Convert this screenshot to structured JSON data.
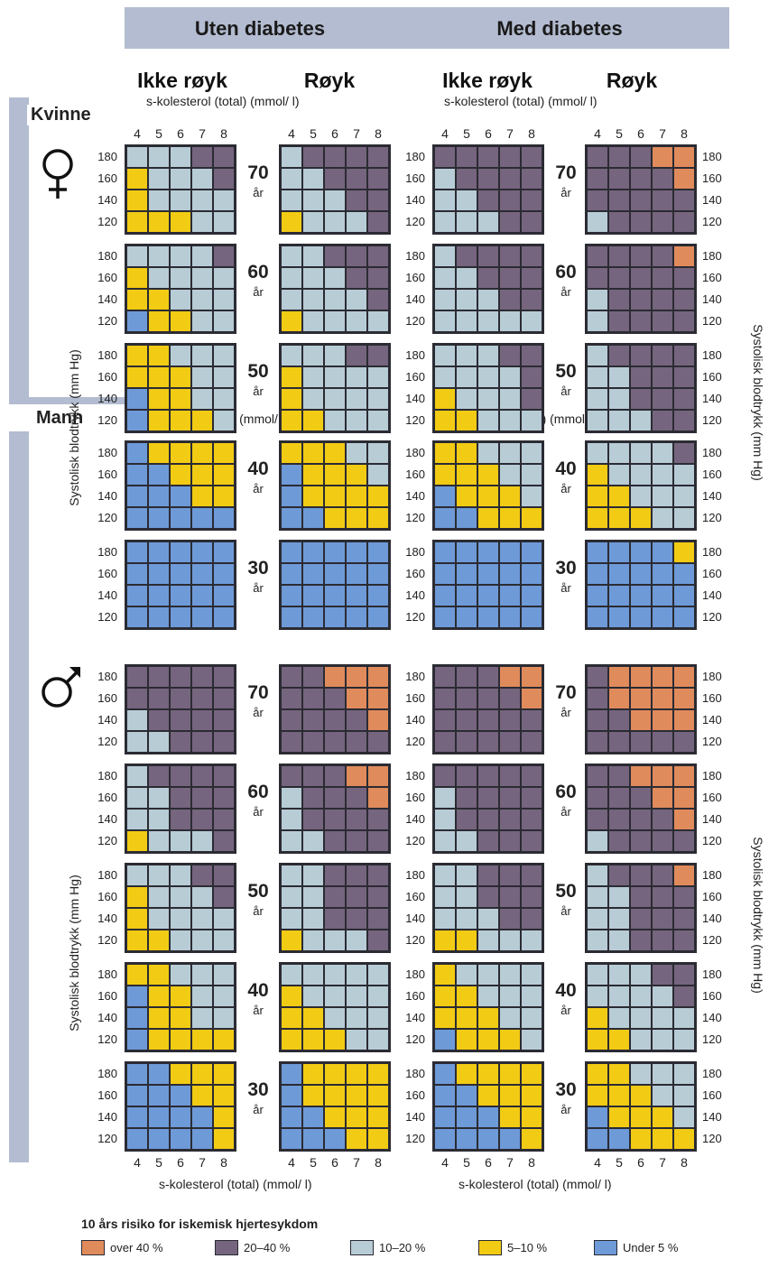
{
  "banner": {
    "left": "Uten diabetes",
    "right": "Med diabetes"
  },
  "columns": [
    "Ikke røyk",
    "Røyk",
    "Ikke røyk",
    "Røyk"
  ],
  "col_subtitle": "s-kolesterol (total) (mmol/ l)",
  "mid_axis_label": "s-kolesterol (total) (mmol/ l)",
  "bottom_axis_label": "s-kolesterol (total) (mmol/ l)",
  "sections": {
    "women": "Kvinne",
    "men": "Mann"
  },
  "y_axis_label": "Systolisk blodtrykk (mm Hg)",
  "age_unit": "år",
  "ages": [
    "70",
    "60",
    "50",
    "40",
    "30"
  ],
  "bp_ticks": [
    "180",
    "160",
    "140",
    "120"
  ],
  "chol_ticks": [
    "4",
    "5",
    "6",
    "7",
    "8"
  ],
  "icons": {
    "female": "female-symbol-icon",
    "male": "male-symbol-icon"
  },
  "legend": {
    "title": "10 års risiko for iskemisk hjertesykdom",
    "items": [
      {
        "key": "O",
        "label": "over 40 %",
        "color": "#e08b5c"
      },
      {
        "key": "P",
        "label": "20–40 %",
        "color": "#76657e"
      },
      {
        "key": "G",
        "label": "10–20 %",
        "color": "#b8ccd6"
      },
      {
        "key": "Y",
        "label": "5–10 %",
        "color": "#f2cb14"
      },
      {
        "key": "B",
        "label": "Under 5 %",
        "color": "#6e9ad8"
      }
    ]
  },
  "chart_data": {
    "type": "heatmap",
    "x": [
      4,
      5,
      6,
      7,
      8
    ],
    "y": [
      180,
      160,
      140,
      120
    ],
    "panels": [
      {
        "sex": "Kvinne",
        "diabetes": "Uten diabetes",
        "smoking": "Ikke røyk",
        "age": 70,
        "rows": [
          "GGGPP",
          "YGGGP",
          "YGGGG",
          "YYYGG"
        ]
      },
      {
        "sex": "Kvinne",
        "diabetes": "Uten diabetes",
        "smoking": "Røyk",
        "age": 70,
        "rows": [
          "GPPPP",
          "GGPPP",
          "GGGPP",
          "YGGGP"
        ]
      },
      {
        "sex": "Kvinne",
        "diabetes": "Med diabetes",
        "smoking": "Ikke røyk",
        "age": 70,
        "rows": [
          "PPPPP",
          "GPPPP",
          "GGPPP",
          "GGGPP"
        ]
      },
      {
        "sex": "Kvinne",
        "diabetes": "Med diabetes",
        "smoking": "Røyk",
        "age": 70,
        "rows": [
          "PPPOO",
          "PPPPO",
          "PPPPP",
          "GPPPP"
        ]
      },
      {
        "sex": "Kvinne",
        "diabetes": "Uten diabetes",
        "smoking": "Ikke røyk",
        "age": 60,
        "rows": [
          "GGGGP",
          "YGGGG",
          "YYGGG",
          "BYYGG"
        ]
      },
      {
        "sex": "Kvinne",
        "diabetes": "Uten diabetes",
        "smoking": "Røyk",
        "age": 60,
        "rows": [
          "GGPPP",
          "GGGPP",
          "GGGGP",
          "YGGGG"
        ]
      },
      {
        "sex": "Kvinne",
        "diabetes": "Med diabetes",
        "smoking": "Ikke røyk",
        "age": 60,
        "rows": [
          "GPPPP",
          "GGPPP",
          "GGGPP",
          "GGGGG"
        ]
      },
      {
        "sex": "Kvinne",
        "diabetes": "Med diabetes",
        "smoking": "Røyk",
        "age": 60,
        "rows": [
          "PPPPO",
          "PPPPP",
          "GPPPP",
          "GPPPP"
        ]
      },
      {
        "sex": "Kvinne",
        "diabetes": "Uten diabetes",
        "smoking": "Ikke røyk",
        "age": 50,
        "rows": [
          "YYGGG",
          "YYYGG",
          "BYYGG",
          "BYYYG"
        ]
      },
      {
        "sex": "Kvinne",
        "diabetes": "Uten diabetes",
        "smoking": "Røyk",
        "age": 50,
        "rows": [
          "GGGPP",
          "YGGGG",
          "YGGGG",
          "YYGGG"
        ]
      },
      {
        "sex": "Kvinne",
        "diabetes": "Med diabetes",
        "smoking": "Ikke røyk",
        "age": 50,
        "rows": [
          "GGGPP",
          "GGGGP",
          "YGGGP",
          "YYGGG"
        ]
      },
      {
        "sex": "Kvinne",
        "diabetes": "Med diabetes",
        "smoking": "Røyk",
        "age": 50,
        "rows": [
          "GPPPP",
          "GGPPP",
          "GGPPP",
          "GGGPP"
        ]
      },
      {
        "sex": "Kvinne",
        "diabetes": "Uten diabetes",
        "smoking": "Ikke røyk",
        "age": 40,
        "rows": [
          "BYYYY",
          "BBYYY",
          "BBBYY",
          "BBBBB"
        ]
      },
      {
        "sex": "Kvinne",
        "diabetes": "Uten diabetes",
        "smoking": "Røyk",
        "age": 40,
        "rows": [
          "YYYGG",
          "BYYYG",
          "BYYYY",
          "BBYYY"
        ]
      },
      {
        "sex": "Kvinne",
        "diabetes": "Med diabetes",
        "smoking": "Ikke røyk",
        "age": 40,
        "rows": [
          "YYGGG",
          "YYYGG",
          "BYYYG",
          "BBYYY"
        ]
      },
      {
        "sex": "Kvinne",
        "diabetes": "Med diabetes",
        "smoking": "Røyk",
        "age": 40,
        "rows": [
          "GGGGP",
          "YGGGG",
          "YYGGG",
          "YYYGG"
        ]
      },
      {
        "sex": "Kvinne",
        "diabetes": "Uten diabetes",
        "smoking": "Ikke røyk",
        "age": 30,
        "rows": [
          "BBBBB",
          "BBBBB",
          "BBBBB",
          "BBBBB"
        ]
      },
      {
        "sex": "Kvinne",
        "diabetes": "Uten diabetes",
        "smoking": "Røyk",
        "age": 30,
        "rows": [
          "BBBBB",
          "BBBBB",
          "BBBBB",
          "BBBBB"
        ]
      },
      {
        "sex": "Kvinne",
        "diabetes": "Med diabetes",
        "smoking": "Ikke røyk",
        "age": 30,
        "rows": [
          "BBBBB",
          "BBBBB",
          "BBBBB",
          "BBBBB"
        ]
      },
      {
        "sex": "Kvinne",
        "diabetes": "Med diabetes",
        "smoking": "Røyk",
        "age": 30,
        "rows": [
          "BBBBY",
          "BBBBB",
          "BBBBB",
          "BBBBB"
        ]
      },
      {
        "sex": "Mann",
        "diabetes": "Uten diabetes",
        "smoking": "Ikke røyk",
        "age": 70,
        "rows": [
          "PPPPP",
          "PPPPP",
          "GPPPP",
          "GGPPP"
        ]
      },
      {
        "sex": "Mann",
        "diabetes": "Uten diabetes",
        "smoking": "Røyk",
        "age": 70,
        "rows": [
          "PPOOO",
          "PPPOO",
          "PPPPO",
          "PPPPP"
        ]
      },
      {
        "sex": "Mann",
        "diabetes": "Med diabetes",
        "smoking": "Ikke røyk",
        "age": 70,
        "rows": [
          "PPPOO",
          "PPPPO",
          "PPPPP",
          "PPPPP"
        ]
      },
      {
        "sex": "Mann",
        "diabetes": "Med diabetes",
        "smoking": "Røyk",
        "age": 70,
        "rows": [
          "POOOO",
          "POOOO",
          "PPOOO",
          "PPPPP"
        ]
      },
      {
        "sex": "Mann",
        "diabetes": "Uten diabetes",
        "smoking": "Ikke røyk",
        "age": 60,
        "rows": [
          "GPPPP",
          "GGPPP",
          "GGPPP",
          "YGGGP"
        ]
      },
      {
        "sex": "Mann",
        "diabetes": "Uten diabetes",
        "smoking": "Røyk",
        "age": 60,
        "rows": [
          "PPPOO",
          "GPPPO",
          "GPPPP",
          "GGPPP"
        ]
      },
      {
        "sex": "Mann",
        "diabetes": "Med diabetes",
        "smoking": "Ikke røyk",
        "age": 60,
        "rows": [
          "PPPPP",
          "GPPPP",
          "GPPPP",
          "GGPPP"
        ]
      },
      {
        "sex": "Mann",
        "diabetes": "Med diabetes",
        "smoking": "Røyk",
        "age": 60,
        "rows": [
          "PPOOO",
          "PPPOO",
          "PPPPO",
          "GPPPP"
        ]
      },
      {
        "sex": "Mann",
        "diabetes": "Uten diabetes",
        "smoking": "Ikke røyk",
        "age": 50,
        "rows": [
          "GGGPP",
          "YGGGP",
          "YGGGG",
          "YYGGG"
        ]
      },
      {
        "sex": "Mann",
        "diabetes": "Uten diabetes",
        "smoking": "Røyk",
        "age": 50,
        "rows": [
          "GGPPP",
          "GGPPP",
          "GGPPP",
          "YGGGP"
        ]
      },
      {
        "sex": "Mann",
        "diabetes": "Med diabetes",
        "smoking": "Ikke røyk",
        "age": 50,
        "rows": [
          "GGPPP",
          "GGPPP",
          "GGGPP",
          "YYGGG"
        ]
      },
      {
        "sex": "Mann",
        "diabetes": "Med diabetes",
        "smoking": "Røyk",
        "age": 50,
        "rows": [
          "GPPPO",
          "GGPPP",
          "GGPPP",
          "GGPPP"
        ]
      },
      {
        "sex": "Mann",
        "diabetes": "Uten diabetes",
        "smoking": "Ikke røyk",
        "age": 40,
        "rows": [
          "YYGGG",
          "BYYGG",
          "BYYGG",
          "BYYYY"
        ]
      },
      {
        "sex": "Mann",
        "diabetes": "Uten diabetes",
        "smoking": "Røyk",
        "age": 40,
        "rows": [
          "GGGGG",
          "YGGGG",
          "YYGGG",
          "YYYGG"
        ]
      },
      {
        "sex": "Mann",
        "diabetes": "Med diabetes",
        "smoking": "Ikke røyk",
        "age": 40,
        "rows": [
          "YGGGG",
          "YYGGG",
          "YYYGG",
          "BYYYG"
        ]
      },
      {
        "sex": "Mann",
        "diabetes": "Med diabetes",
        "smoking": "Røyk",
        "age": 40,
        "rows": [
          "GGGPP",
          "GGGGP",
          "YGGGG",
          "YYGGG"
        ]
      },
      {
        "sex": "Mann",
        "diabetes": "Uten diabetes",
        "smoking": "Ikke røyk",
        "age": 30,
        "rows": [
          "BBYYY",
          "BBBYY",
          "BBBBY",
          "BBBBY"
        ]
      },
      {
        "sex": "Mann",
        "diabetes": "Uten diabetes",
        "smoking": "Røyk",
        "age": 30,
        "rows": [
          "BYYYY",
          "BYYYY",
          "BBYYY",
          "BBBYY"
        ]
      },
      {
        "sex": "Mann",
        "diabetes": "Med diabetes",
        "smoking": "Ikke røyk",
        "age": 30,
        "rows": [
          "BYYYY",
          "BBYYY",
          "BBBYY",
          "BBBBY"
        ]
      },
      {
        "sex": "Mann",
        "diabetes": "Med diabetes",
        "smoking": "Røyk",
        "age": 30,
        "rows": [
          "YYGGG",
          "YYYGG",
          "BYYYG",
          "BBYYY"
        ]
      }
    ]
  }
}
